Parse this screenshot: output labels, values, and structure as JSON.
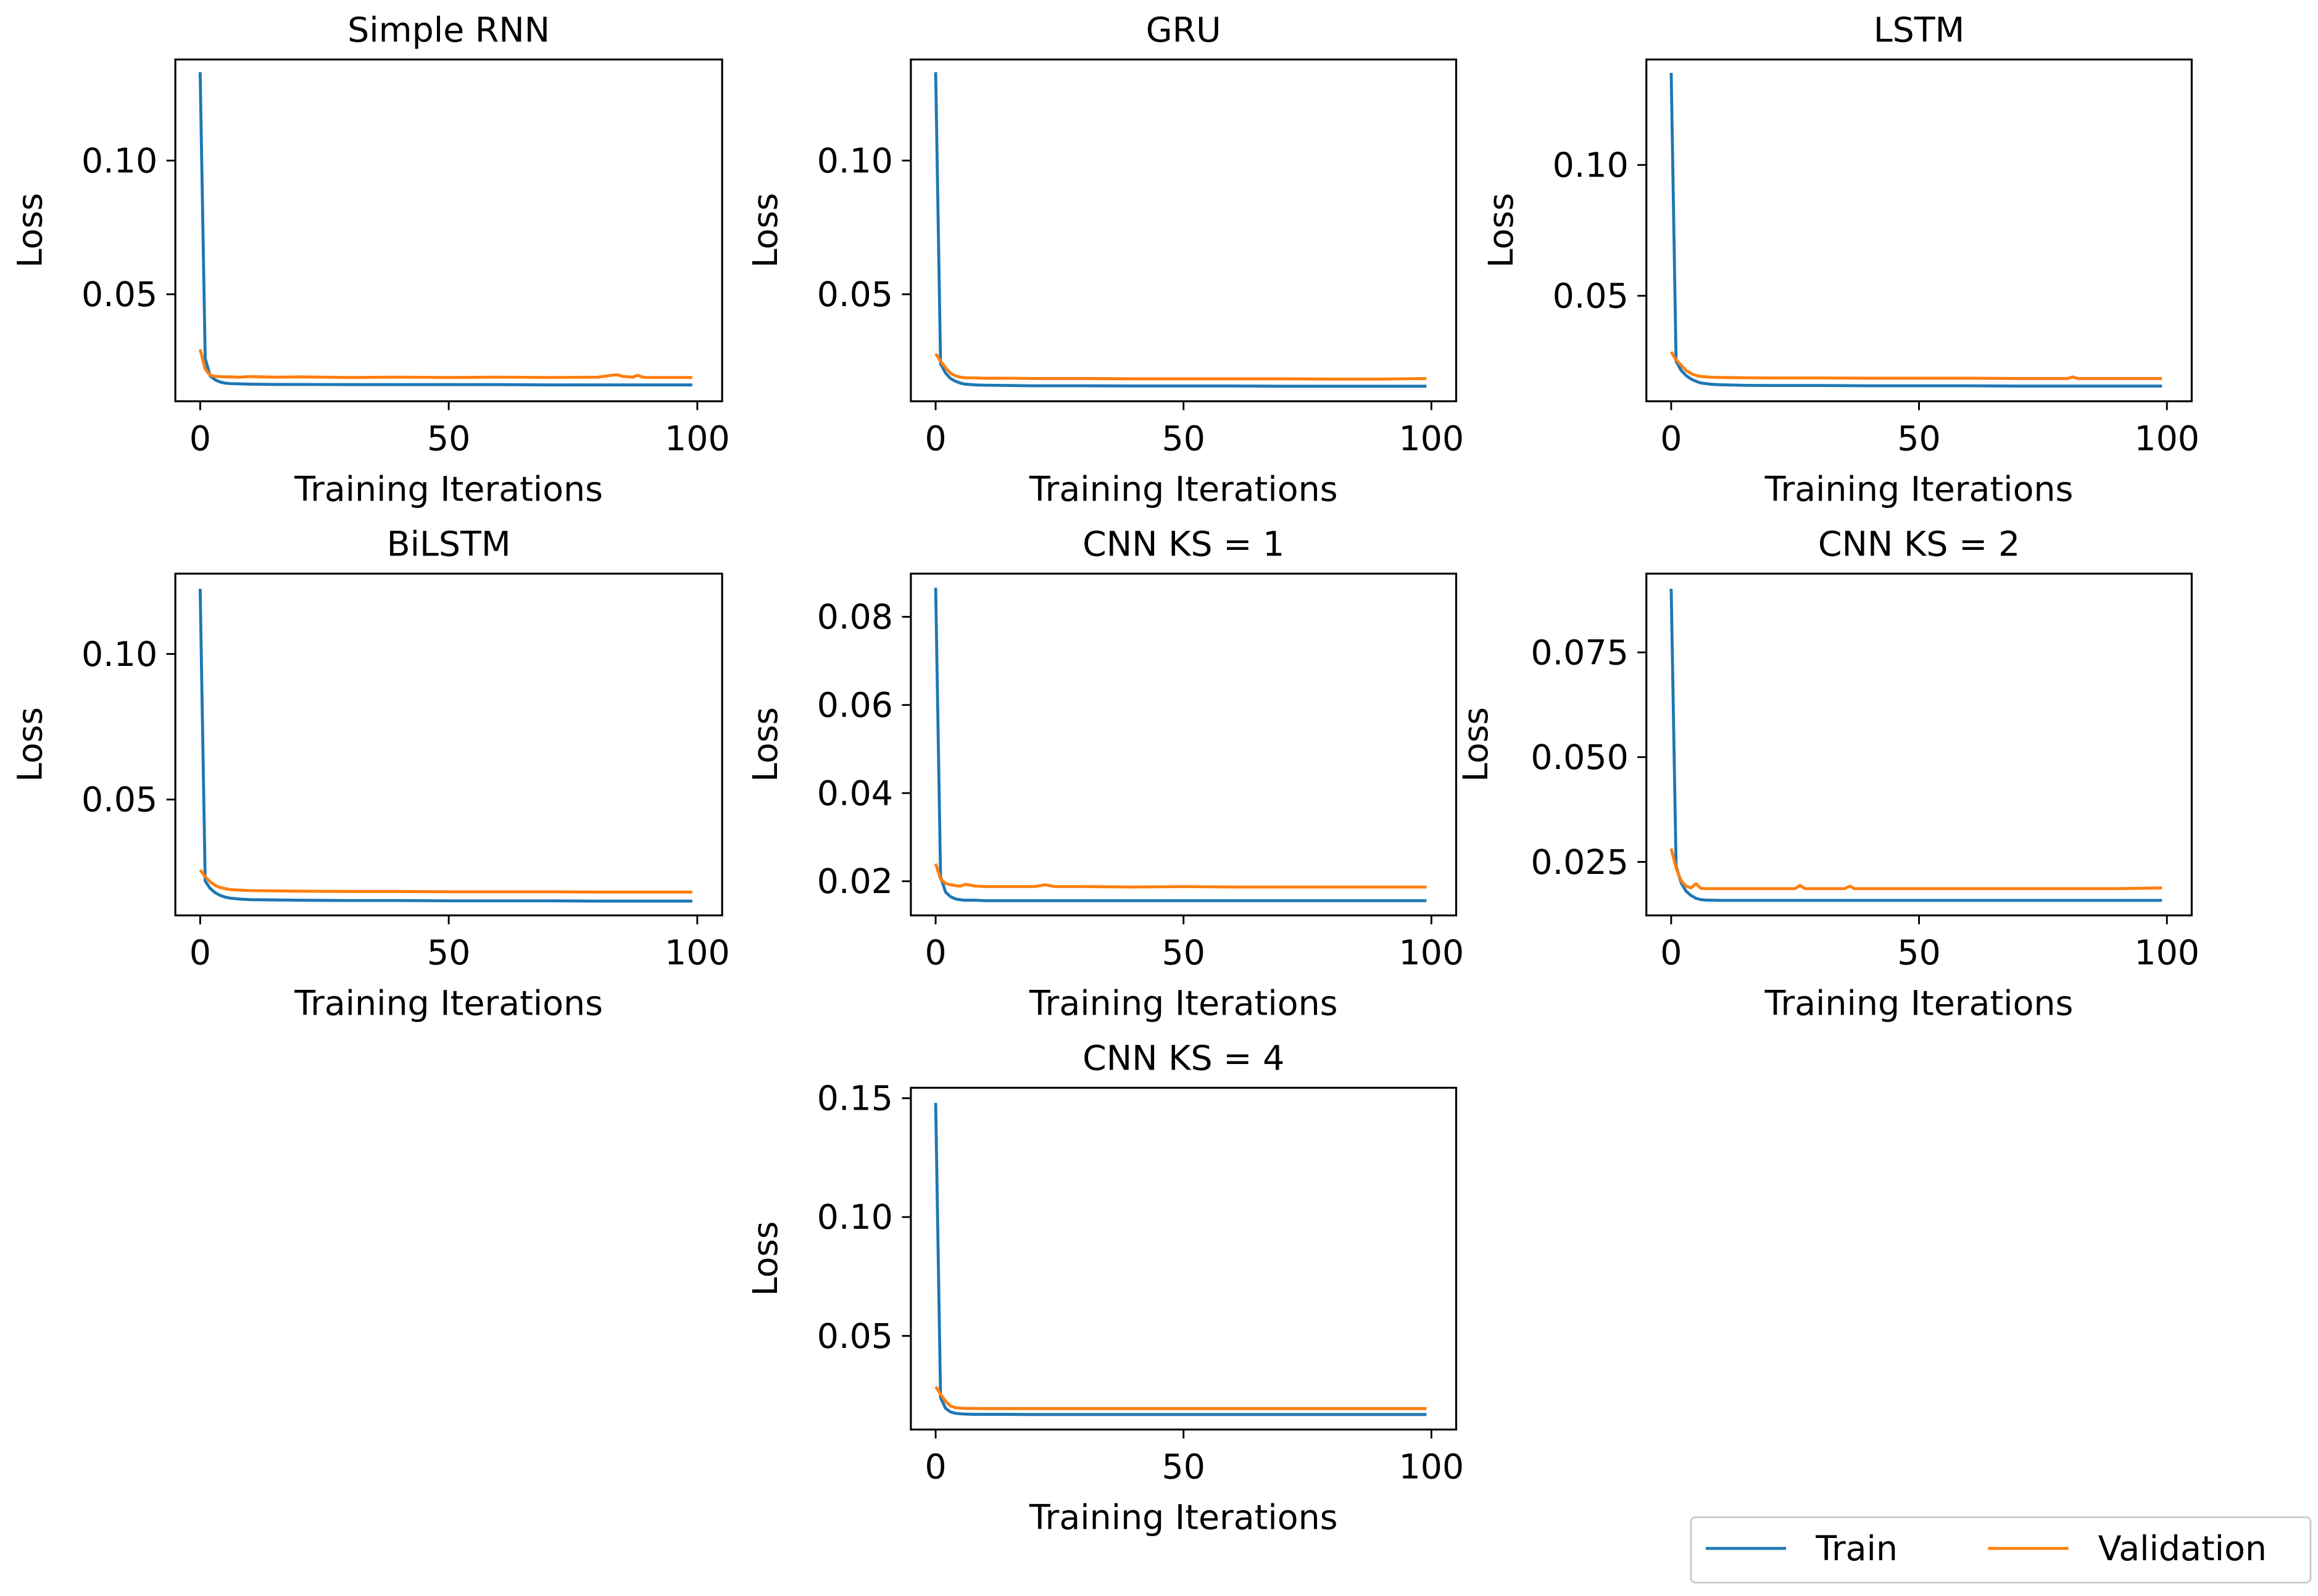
{
  "chart_data": [
    {
      "type": "line",
      "title": "Simple RNN",
      "xlabel": "Training Iterations",
      "ylabel": "Loss",
      "xlim": [
        -5,
        105
      ],
      "xticks": [
        0,
        50,
        100
      ],
      "ylim": [
        0.01,
        0.1378
      ],
      "yticks": [
        0.05,
        0.1
      ],
      "ytick_labels": [
        "0.05",
        "0.10"
      ],
      "x": [
        0,
        1,
        2,
        3,
        4,
        5,
        6,
        8,
        10,
        15,
        20,
        30,
        40,
        50,
        60,
        70,
        80,
        83,
        84,
        85,
        87,
        88,
        89,
        90,
        99
      ],
      "series": [
        {
          "name": "Train",
          "values": [
            0.133,
            0.026,
            0.0195,
            0.018,
            0.0172,
            0.0168,
            0.0166,
            0.0165,
            0.0164,
            0.0163,
            0.0163,
            0.0162,
            0.0162,
            0.0162,
            0.0162,
            0.0161,
            0.0161,
            0.0161,
            0.0161,
            0.0161,
            0.0161,
            0.0161,
            0.0161,
            0.0161,
            0.0161
          ]
        },
        {
          "name": "Validation",
          "values": [
            0.0294,
            0.022,
            0.0198,
            0.0193,
            0.0192,
            0.0191,
            0.0191,
            0.019,
            0.0192,
            0.019,
            0.0191,
            0.0189,
            0.019,
            0.0189,
            0.019,
            0.0189,
            0.019,
            0.0198,
            0.0199,
            0.0193,
            0.019,
            0.0197,
            0.019,
            0.0189,
            0.0189
          ]
        }
      ]
    },
    {
      "type": "line",
      "title": "GRU",
      "xlabel": "Training Iterations",
      "ylabel": "Loss",
      "xlim": [
        -5,
        105
      ],
      "xticks": [
        0,
        50,
        100
      ],
      "ylim": [
        0.01,
        0.1378
      ],
      "yticks": [
        0.05,
        0.1
      ],
      "ytick_labels": [
        "0.05",
        "0.10"
      ],
      "x": [
        0,
        1,
        2,
        3,
        4,
        5,
        6,
        8,
        10,
        15,
        20,
        30,
        40,
        50,
        60,
        70,
        80,
        90,
        99
      ],
      "series": [
        {
          "name": "Train",
          "values": [
            0.133,
            0.024,
            0.0205,
            0.0185,
            0.0175,
            0.0168,
            0.0164,
            0.0161,
            0.016,
            0.0159,
            0.0158,
            0.0158,
            0.0157,
            0.0157,
            0.0157,
            0.0156,
            0.0156,
            0.0156,
            0.0156
          ]
        },
        {
          "name": "Validation",
          "values": [
            0.0278,
            0.025,
            0.0225,
            0.0205,
            0.0195,
            0.019,
            0.0188,
            0.0187,
            0.0186,
            0.0186,
            0.0185,
            0.0185,
            0.0184,
            0.0184,
            0.0184,
            0.0184,
            0.0183,
            0.0183,
            0.0185
          ]
        }
      ]
    },
    {
      "type": "line",
      "title": "LSTM",
      "xlabel": "Training Iterations",
      "ylabel": "Loss",
      "xlim": [
        -5,
        105
      ],
      "xticks": [
        0,
        50,
        100
      ],
      "ylim": [
        0.0097,
        0.1403
      ],
      "yticks": [
        0.05,
        0.1
      ],
      "ytick_labels": [
        "0.05",
        "0.10"
      ],
      "x": [
        0,
        1,
        2,
        3,
        4,
        5,
        6,
        8,
        10,
        15,
        20,
        30,
        40,
        50,
        60,
        70,
        80,
        81,
        82,
        90,
        99
      ],
      "series": [
        {
          "name": "Train",
          "values": [
            0.1352,
            0.025,
            0.0215,
            0.0195,
            0.0182,
            0.0173,
            0.0167,
            0.0162,
            0.016,
            0.0158,
            0.0157,
            0.0157,
            0.0156,
            0.0156,
            0.0156,
            0.0155,
            0.0155,
            0.0155,
            0.0155,
            0.0155,
            0.0155
          ]
        },
        {
          "name": "Validation",
          "values": [
            0.0286,
            0.0255,
            0.0235,
            0.0215,
            0.0203,
            0.0196,
            0.0192,
            0.0189,
            0.0188,
            0.0187,
            0.0186,
            0.0186,
            0.0185,
            0.0185,
            0.0185,
            0.0184,
            0.0184,
            0.019,
            0.0184,
            0.0184,
            0.0184
          ]
        }
      ]
    },
    {
      "type": "line",
      "title": "BiLSTM",
      "xlabel": "Training Iterations",
      "ylabel": "Loss",
      "xlim": [
        -5,
        105
      ],
      "xticks": [
        0,
        50,
        100
      ],
      "ylim": [
        0.0102,
        0.1276
      ],
      "yticks": [
        0.05,
        0.1
      ],
      "ytick_labels": [
        "0.05",
        "0.10"
      ],
      "x": [
        0,
        1,
        2,
        3,
        4,
        5,
        6,
        8,
        10,
        15,
        20,
        30,
        40,
        50,
        60,
        70,
        80,
        90,
        99
      ],
      "series": [
        {
          "name": "Train",
          "values": [
            0.1224,
            0.022,
            0.0195,
            0.018,
            0.0171,
            0.0165,
            0.0161,
            0.0158,
            0.0156,
            0.0155,
            0.0154,
            0.0153,
            0.0153,
            0.0152,
            0.0152,
            0.0152,
            0.0151,
            0.0151,
            0.0151
          ]
        },
        {
          "name": "Validation",
          "values": [
            0.0258,
            0.0235,
            0.0218,
            0.0205,
            0.0198,
            0.0194,
            0.0191,
            0.0189,
            0.0187,
            0.0186,
            0.0185,
            0.0184,
            0.0184,
            0.0183,
            0.0183,
            0.0183,
            0.0182,
            0.0182,
            0.0182
          ]
        }
      ]
    },
    {
      "type": "line",
      "title": "CNN KS = 1",
      "xlabel": "Training Iterations",
      "ylabel": "Loss",
      "xlim": [
        -5,
        105
      ],
      "xticks": [
        0,
        50,
        100
      ],
      "ylim": [
        0.01225,
        0.0898
      ],
      "yticks": [
        0.02,
        0.04,
        0.06,
        0.08
      ],
      "ytick_labels": [
        "0.02",
        "0.04",
        "0.06",
        "0.08"
      ],
      "x": [
        0,
        1,
        2,
        3,
        4,
        5,
        6,
        8,
        10,
        15,
        20,
        22,
        24,
        30,
        40,
        50,
        60,
        70,
        80,
        90,
        99
      ],
      "series": [
        {
          "name": "Train",
          "values": [
            0.0866,
            0.021,
            0.0175,
            0.0165,
            0.016,
            0.0158,
            0.0157,
            0.0157,
            0.0156,
            0.0156,
            0.0156,
            0.0156,
            0.0156,
            0.0156,
            0.0156,
            0.0156,
            0.0156,
            0.0156,
            0.0156,
            0.0156,
            0.0156
          ]
        },
        {
          "name": "Validation",
          "values": [
            0.024,
            0.0205,
            0.0195,
            0.0192,
            0.019,
            0.0189,
            0.0193,
            0.0189,
            0.0188,
            0.0188,
            0.0188,
            0.0192,
            0.0188,
            0.0188,
            0.0187,
            0.0188,
            0.0187,
            0.0187,
            0.0187,
            0.0187,
            0.0187
          ]
        }
      ]
    },
    {
      "type": "line",
      "title": "CNN KS = 2",
      "xlabel": "Training Iterations",
      "ylabel": "Loss",
      "xlim": [
        -5,
        105
      ],
      "xticks": [
        0,
        50,
        100
      ],
      "ylim": [
        0.01223,
        0.0938
      ],
      "yticks": [
        0.025,
        0.05,
        0.075
      ],
      "ytick_labels": [
        "0.025",
        "0.050",
        "0.075"
      ],
      "x": [
        0,
        1,
        2,
        3,
        4,
        5,
        6,
        7,
        10,
        20,
        25,
        26,
        27,
        35,
        36,
        37,
        40,
        50,
        60,
        70,
        80,
        90,
        99
      ],
      "series": [
        {
          "name": "Train",
          "values": [
            0.0902,
            0.024,
            0.02,
            0.018,
            0.017,
            0.0163,
            0.016,
            0.0159,
            0.0158,
            0.0158,
            0.0158,
            0.0158,
            0.0158,
            0.0158,
            0.0158,
            0.0158,
            0.0158,
            0.0158,
            0.0158,
            0.0158,
            0.0158,
            0.0158,
            0.0158
          ]
        },
        {
          "name": "Validation",
          "values": [
            0.0282,
            0.0235,
            0.0205,
            0.0192,
            0.0188,
            0.0198,
            0.0187,
            0.0186,
            0.0186,
            0.0186,
            0.0186,
            0.0194,
            0.0186,
            0.0186,
            0.0192,
            0.0186,
            0.0186,
            0.0186,
            0.0186,
            0.0186,
            0.0186,
            0.0186,
            0.0188
          ]
        }
      ]
    },
    {
      "type": "line",
      "title": "CNN KS = 4",
      "xlabel": "Training Iterations",
      "ylabel": "Loss",
      "xlim": [
        -5,
        105
      ],
      "xticks": [
        0,
        50,
        100
      ],
      "ylim": [
        0.0106,
        0.1544
      ],
      "yticks": [
        0.05,
        0.1,
        0.15
      ],
      "ytick_labels": [
        "0.05",
        "0.10",
        "0.15"
      ],
      "x": [
        0,
        1,
        2,
        3,
        4,
        5,
        6,
        8,
        10,
        15,
        20,
        30,
        40,
        50,
        60,
        70,
        80,
        90,
        99
      ],
      "series": [
        {
          "name": "Train",
          "values": [
            0.148,
            0.024,
            0.0195,
            0.018,
            0.0174,
            0.0172,
            0.0171,
            0.017,
            0.017,
            0.017,
            0.0169,
            0.0169,
            0.0169,
            0.0169,
            0.0169,
            0.0169,
            0.0169,
            0.0169,
            0.0169
          ]
        },
        {
          "name": "Validation",
          "values": [
            0.0287,
            0.0255,
            0.0225,
            0.0205,
            0.0198,
            0.0196,
            0.0195,
            0.0195,
            0.0194,
            0.0194,
            0.0194,
            0.0194,
            0.0194,
            0.0194,
            0.0194,
            0.0194,
            0.0194,
            0.0194,
            0.0194
          ]
        }
      ]
    }
  ],
  "legend": {
    "position": "bottom-right",
    "items": [
      {
        "label": "Train",
        "color": "#1f77b4"
      },
      {
        "label": "Validation",
        "color": "#ff7f0e"
      }
    ]
  }
}
